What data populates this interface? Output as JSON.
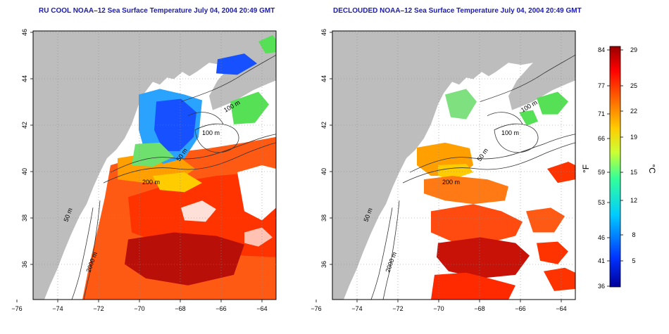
{
  "panels": [
    {
      "title": "RU COOL NOAA–12 Sea Surface Temperature July 04, 2004 20:49 GMT",
      "contour_labels": [
        "100 m",
        "100 m",
        "50 m",
        "200 m",
        "50 m",
        "2000 m"
      ]
    },
    {
      "title": "DECLOUDED NOAA–12 Sea Surface Temperature July 04, 2004 20:49 GMT",
      "contour_labels": [
        "100 m",
        "100 m",
        "50 m",
        "200 m",
        "50 m",
        "2000 m"
      ]
    }
  ],
  "axes": {
    "x_ticks": [
      "−76",
      "−74",
      "−72",
      "−70",
      "−68",
      "−66",
      "−64"
    ],
    "y_ticks": [
      "46",
      "44",
      "42",
      "40",
      "38",
      "36"
    ]
  },
  "colorbar": {
    "left_unit": "°F",
    "right_unit": "°C",
    "fahrenheit_ticks": [
      "84",
      "77",
      "71",
      "66",
      "59",
      "53",
      "46",
      "41",
      "36"
    ],
    "celsius_ticks": [
      "29",
      "25",
      "22",
      "19",
      "15",
      "12",
      "8",
      "5"
    ],
    "colors": [
      "#000099",
      "#0033ff",
      "#00ccff",
      "#33ff99",
      "#ccff33",
      "#ffcc00",
      "#ff6600",
      "#ff0000",
      "#990000"
    ]
  },
  "colors": {
    "land": "#bdbdbd",
    "no_data": "#ffffff",
    "title": "#1b1bb0"
  }
}
